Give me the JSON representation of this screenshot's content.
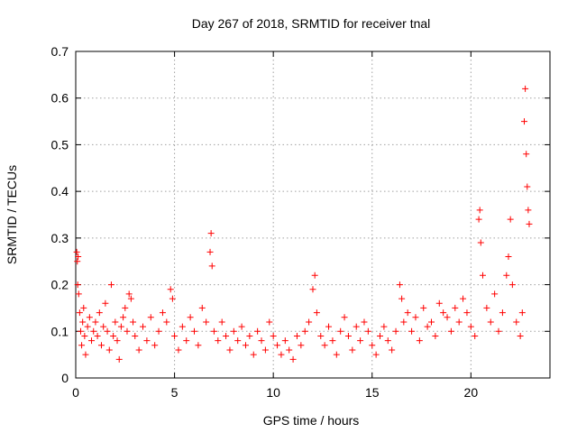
{
  "chart_data": {
    "type": "scatter",
    "title": "Day 267 of 2018, SRMTID for receiver tnal",
    "xlabel": "GPS time / hours",
    "ylabel": "SRMTID / TECUs",
    "xlim": [
      0,
      24
    ],
    "ylim": [
      0,
      0.7
    ],
    "xticks": [
      "0",
      "5",
      "10",
      "15",
      "20"
    ],
    "yticks": [
      "0",
      "0.1",
      "0.2",
      "0.3",
      "0.4",
      "0.5",
      "0.6",
      "0.7"
    ],
    "grid": true,
    "marker": "plus",
    "color": "#ff0000",
    "series": [
      {
        "name": "SRMTID",
        "points": [
          [
            0.05,
            0.27
          ],
          [
            0.08,
            0.25
          ],
          [
            0.1,
            0.2
          ],
          [
            0.12,
            0.26
          ],
          [
            0.15,
            0.18
          ],
          [
            0.2,
            0.14
          ],
          [
            0.25,
            0.1
          ],
          [
            0.3,
            0.07
          ],
          [
            0.35,
            0.12
          ],
          [
            0.4,
            0.15
          ],
          [
            0.45,
            0.09
          ],
          [
            0.5,
            0.05
          ],
          [
            0.6,
            0.11
          ],
          [
            0.7,
            0.13
          ],
          [
            0.8,
            0.08
          ],
          [
            0.9,
            0.1
          ],
          [
            1.0,
            0.12
          ],
          [
            1.1,
            0.09
          ],
          [
            1.2,
            0.14
          ],
          [
            1.3,
            0.07
          ],
          [
            1.4,
            0.11
          ],
          [
            1.5,
            0.16
          ],
          [
            1.6,
            0.1
          ],
          [
            1.7,
            0.06
          ],
          [
            1.8,
            0.2
          ],
          [
            1.9,
            0.09
          ],
          [
            2.0,
            0.12
          ],
          [
            2.1,
            0.08
          ],
          [
            2.2,
            0.04
          ],
          [
            2.3,
            0.11
          ],
          [
            2.4,
            0.13
          ],
          [
            2.5,
            0.15
          ],
          [
            2.6,
            0.1
          ],
          [
            2.7,
            0.18
          ],
          [
            2.8,
            0.17
          ],
          [
            2.9,
            0.12
          ],
          [
            3.0,
            0.09
          ],
          [
            3.2,
            0.06
          ],
          [
            3.4,
            0.11
          ],
          [
            3.6,
            0.08
          ],
          [
            3.8,
            0.13
          ],
          [
            4.0,
            0.07
          ],
          [
            4.2,
            0.1
          ],
          [
            4.4,
            0.14
          ],
          [
            4.6,
            0.12
          ],
          [
            4.8,
            0.19
          ],
          [
            4.9,
            0.17
          ],
          [
            5.0,
            0.09
          ],
          [
            5.2,
            0.06
          ],
          [
            5.4,
            0.11
          ],
          [
            5.6,
            0.08
          ],
          [
            5.8,
            0.13
          ],
          [
            6.0,
            0.1
          ],
          [
            6.2,
            0.07
          ],
          [
            6.4,
            0.15
          ],
          [
            6.6,
            0.12
          ],
          [
            6.8,
            0.27
          ],
          [
            6.85,
            0.31
          ],
          [
            6.9,
            0.24
          ],
          [
            7.0,
            0.1
          ],
          [
            7.2,
            0.08
          ],
          [
            7.4,
            0.12
          ],
          [
            7.6,
            0.09
          ],
          [
            7.8,
            0.06
          ],
          [
            8.0,
            0.1
          ],
          [
            8.2,
            0.08
          ],
          [
            8.4,
            0.11
          ],
          [
            8.6,
            0.07
          ],
          [
            8.8,
            0.09
          ],
          [
            9.0,
            0.05
          ],
          [
            9.2,
            0.1
          ],
          [
            9.4,
            0.08
          ],
          [
            9.6,
            0.06
          ],
          [
            9.8,
            0.12
          ],
          [
            10.0,
            0.09
          ],
          [
            10.2,
            0.07
          ],
          [
            10.4,
            0.05
          ],
          [
            10.6,
            0.08
          ],
          [
            10.8,
            0.06
          ],
          [
            11.0,
            0.04
          ],
          [
            11.2,
            0.09
          ],
          [
            11.4,
            0.07
          ],
          [
            11.6,
            0.1
          ],
          [
            11.8,
            0.12
          ],
          [
            12.0,
            0.19
          ],
          [
            12.1,
            0.22
          ],
          [
            12.2,
            0.14
          ],
          [
            12.4,
            0.09
          ],
          [
            12.6,
            0.07
          ],
          [
            12.8,
            0.11
          ],
          [
            13.0,
            0.08
          ],
          [
            13.2,
            0.05
          ],
          [
            13.4,
            0.1
          ],
          [
            13.6,
            0.13
          ],
          [
            13.8,
            0.09
          ],
          [
            14.0,
            0.06
          ],
          [
            14.2,
            0.11
          ],
          [
            14.4,
            0.08
          ],
          [
            14.6,
            0.12
          ],
          [
            14.8,
            0.1
          ],
          [
            15.0,
            0.07
          ],
          [
            15.2,
            0.05
          ],
          [
            15.4,
            0.09
          ],
          [
            15.6,
            0.11
          ],
          [
            15.8,
            0.08
          ],
          [
            16.0,
            0.06
          ],
          [
            16.2,
            0.1
          ],
          [
            16.4,
            0.2
          ],
          [
            16.5,
            0.17
          ],
          [
            16.6,
            0.12
          ],
          [
            16.8,
            0.14
          ],
          [
            17.0,
            0.1
          ],
          [
            17.2,
            0.13
          ],
          [
            17.4,
            0.08
          ],
          [
            17.6,
            0.15
          ],
          [
            17.8,
            0.11
          ],
          [
            18.0,
            0.12
          ],
          [
            18.2,
            0.09
          ],
          [
            18.4,
            0.16
          ],
          [
            18.6,
            0.14
          ],
          [
            18.8,
            0.13
          ],
          [
            19.0,
            0.1
          ],
          [
            19.2,
            0.15
          ],
          [
            19.4,
            0.12
          ],
          [
            19.6,
            0.17
          ],
          [
            19.8,
            0.14
          ],
          [
            20.0,
            0.11
          ],
          [
            20.2,
            0.09
          ],
          [
            20.4,
            0.34
          ],
          [
            20.45,
            0.36
          ],
          [
            20.5,
            0.29
          ],
          [
            20.6,
            0.22
          ],
          [
            20.8,
            0.15
          ],
          [
            21.0,
            0.12
          ],
          [
            21.2,
            0.18
          ],
          [
            21.4,
            0.1
          ],
          [
            21.6,
            0.14
          ],
          [
            21.8,
            0.22
          ],
          [
            21.9,
            0.26
          ],
          [
            22.0,
            0.34
          ],
          [
            22.1,
            0.2
          ],
          [
            22.3,
            0.12
          ],
          [
            22.5,
            0.09
          ],
          [
            22.6,
            0.14
          ],
          [
            22.7,
            0.55
          ],
          [
            22.75,
            0.62
          ],
          [
            22.8,
            0.48
          ],
          [
            22.85,
            0.41
          ],
          [
            22.9,
            0.36
          ],
          [
            22.95,
            0.33
          ]
        ]
      }
    ]
  }
}
